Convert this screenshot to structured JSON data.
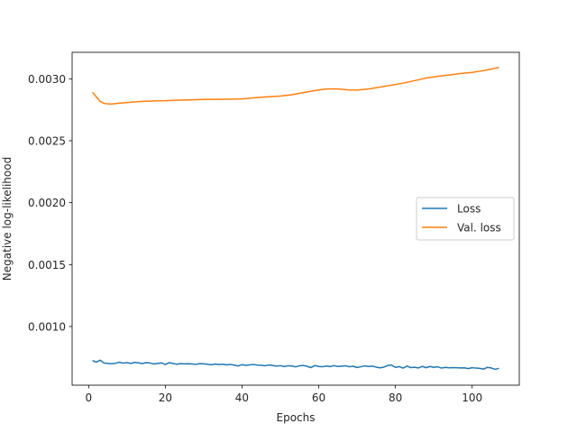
{
  "chart_data": {
    "type": "line",
    "title": "",
    "xlabel": "Epochs",
    "ylabel": "Negative log-likelihood",
    "xlim": [
      -4.3,
      112.3
    ],
    "ylim": [
      0.000526,
      0.003214
    ],
    "xticks": [
      0,
      20,
      40,
      60,
      80,
      100
    ],
    "xtick_labels": [
      "0",
      "20",
      "40",
      "60",
      "80",
      "100"
    ],
    "yticks": [
      0.001,
      0.0015,
      0.002,
      0.0025,
      0.003
    ],
    "ytick_labels": [
      "0.0010",
      "0.0015",
      "0.0020",
      "0.0025",
      "0.0030"
    ],
    "grid": false,
    "legend_position": "center-right",
    "series": [
      {
        "name": "Loss",
        "color": "#1f77b4",
        "x": [
          1,
          2,
          3,
          4,
          5,
          6,
          7,
          8,
          9,
          10,
          11,
          12,
          13,
          14,
          15,
          16,
          17,
          18,
          19,
          20,
          21,
          22,
          23,
          24,
          25,
          26,
          27,
          28,
          29,
          30,
          31,
          32,
          33,
          34,
          35,
          36,
          37,
          38,
          39,
          40,
          41,
          42,
          43,
          44,
          45,
          46,
          47,
          48,
          49,
          50,
          51,
          52,
          53,
          54,
          55,
          56,
          57,
          58,
          59,
          60,
          61,
          62,
          63,
          64,
          65,
          66,
          67,
          68,
          69,
          70,
          71,
          72,
          73,
          74,
          75,
          76,
          77,
          78,
          79,
          80,
          81,
          82,
          83,
          84,
          85,
          86,
          87,
          88,
          89,
          90,
          91,
          92,
          93,
          94,
          95,
          96,
          97,
          98,
          99,
          100,
          101,
          102,
          103,
          104,
          105,
          106,
          107
        ],
        "y": [
          0.000725,
          0.000712,
          0.000728,
          0.000705,
          0.000702,
          0.000699,
          0.000703,
          0.000712,
          0.000704,
          0.000708,
          0.000702,
          0.00071,
          0.000706,
          0.000701,
          0.000708,
          0.000705,
          0.000697,
          0.000702,
          0.000706,
          0.000693,
          0.000708,
          0.000702,
          0.000695,
          0.0007,
          0.000698,
          0.000699,
          0.000697,
          0.000694,
          0.0007,
          0.000698,
          0.000695,
          0.000691,
          0.000697,
          0.000693,
          0.000695,
          0.00069,
          0.000694,
          0.000688,
          0.000681,
          0.000692,
          0.000686,
          0.00069,
          0.000693,
          0.000688,
          0.000687,
          0.000683,
          0.000689,
          0.000685,
          0.00068,
          0.000684,
          0.000676,
          0.000683,
          0.000681,
          0.000674,
          0.000683,
          0.000685,
          0.000678,
          0.000668,
          0.000685,
          0.000677,
          0.000675,
          0.000681,
          0.000676,
          0.000684,
          0.000677,
          0.00068,
          0.000683,
          0.000675,
          0.000679,
          0.000669,
          0.000675,
          0.000682,
          0.000677,
          0.00068,
          0.000672,
          0.000666,
          0.000672,
          0.000685,
          0.000688,
          0.00067,
          0.000676,
          0.000664,
          0.00068,
          0.000668,
          0.000671,
          0.000665,
          0.000678,
          0.000667,
          0.000677,
          0.00067,
          0.000675,
          0.000664,
          0.00067,
          0.000666,
          0.000668,
          0.000667,
          0.000665,
          0.000666,
          0.00066,
          0.000667,
          0.000664,
          0.000662,
          0.000656,
          0.00067,
          0.000665,
          0.000654,
          0.000662
        ]
      },
      {
        "name": "Val. loss",
        "color": "#ff7f0e",
        "x": [
          1,
          2,
          3,
          4,
          5,
          6,
          7,
          8,
          10,
          12,
          14,
          16,
          18,
          20,
          22,
          25,
          28,
          30,
          33,
          36,
          40,
          43,
          46,
          50,
          53,
          56,
          59,
          62,
          65,
          68,
          70,
          73,
          76,
          79,
          82,
          85,
          88,
          91,
          94,
          97,
          100,
          103,
          105,
          107
        ],
        "y": [
          0.002891,
          0.002855,
          0.002818,
          0.002802,
          0.002798,
          0.002797,
          0.0028,
          0.002803,
          0.002808,
          0.002814,
          0.002818,
          0.00282,
          0.002822,
          0.002823,
          0.002826,
          0.002829,
          0.002832,
          0.002833,
          0.002834,
          0.002835,
          0.002838,
          0.002846,
          0.002853,
          0.002861,
          0.002872,
          0.002889,
          0.002905,
          0.002918,
          0.002918,
          0.00291,
          0.002909,
          0.002918,
          0.002933,
          0.002949,
          0.002965,
          0.002985,
          0.003006,
          0.00302,
          0.003031,
          0.003043,
          0.003052,
          0.003066,
          0.003078,
          0.003093
        ]
      }
    ]
  }
}
